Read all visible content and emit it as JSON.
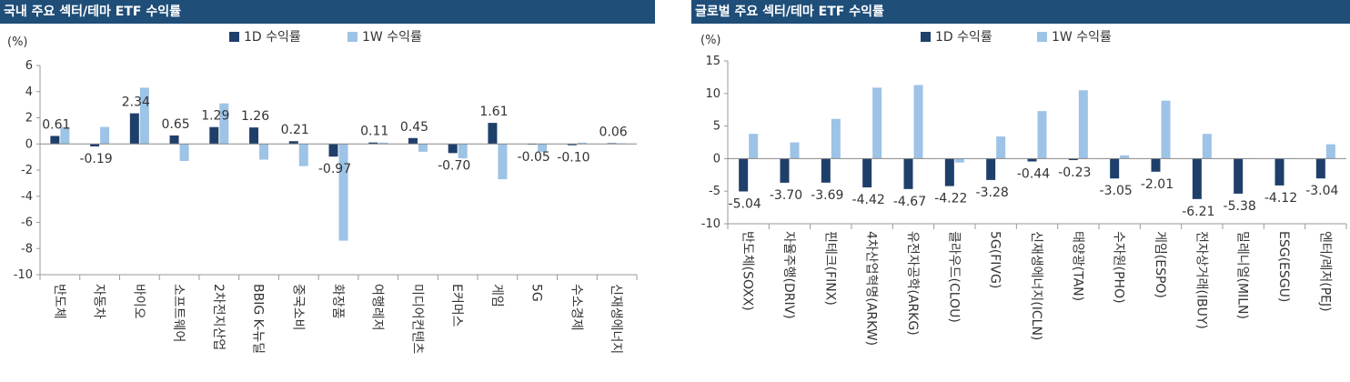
{
  "chart_data": [
    {
      "type": "bar",
      "title": "국내 주요 섹터/테마 ETF 수익률",
      "unit_label": "(%)",
      "ylim": [
        -10,
        6
      ],
      "yticks": [
        6,
        4,
        2,
        0,
        -2,
        -4,
        -6,
        -8,
        -10
      ],
      "legend_position": "top-center",
      "categories": [
        "반도체",
        "자동차",
        "바이오",
        "소프트웨어",
        "2차전지산업",
        "BBIG K-뉴딜",
        "중국소비",
        "화장품",
        "여행레저",
        "미디어컨텐츠",
        "E커머스",
        "게임",
        "5G",
        "수소경제",
        "신재생에너지"
      ],
      "series": [
        {
          "name": "1D 수익률",
          "color": "#1f3f6b",
          "values": [
            0.61,
            -0.19,
            2.34,
            0.65,
            1.29,
            1.26,
            0.21,
            -0.97,
            0.11,
            0.45,
            -0.7,
            1.61,
            -0.05,
            -0.1,
            0.06
          ],
          "labels": [
            "0.61",
            "-0.19",
            "2.34",
            "0.65",
            "1.29",
            "1.26",
            "0.21",
            "-0.97",
            "0.11",
            "0.45",
            "-0.70",
            "1.61",
            "-0.05",
            "-0.10",
            "0.06"
          ]
        },
        {
          "name": "1W 수익률",
          "color": "#9dc3e6",
          "values": [
            1.3,
            1.3,
            4.3,
            -1.3,
            3.1,
            -1.2,
            -1.7,
            -7.4,
            0.1,
            -0.6,
            -1.1,
            -2.7,
            -0.6,
            0.1,
            0.05
          ]
        }
      ]
    },
    {
      "type": "bar",
      "title": "글로벌 주요 섹터/테마 ETF 수익률",
      "unit_label": "(%)",
      "ylim": [
        -10,
        15
      ],
      "yticks": [
        15,
        10,
        5,
        0,
        -5,
        -10
      ],
      "legend_position": "top-center",
      "categories": [
        "반도체(SOXX)",
        "자율주행(DRIV)",
        "핀테크(FINX)",
        "4차산업혁명(ARKW)",
        "유전자공학(ARKG)",
        "클라우드(CLOU)",
        "5G(FIVG)",
        "신재생에너지(ICLN)",
        "태양광(TAN)",
        "수자원(PHO)",
        "게임(ESPO)",
        "전자상거래(IBUY)",
        "밀레니얼(MILN)",
        "ESG(ESGU)",
        "엔터/레저(PEJ)"
      ],
      "series": [
        {
          "name": "1D 수익률",
          "color": "#1f3f6b",
          "values": [
            -5.04,
            -3.7,
            -3.69,
            -4.42,
            -4.67,
            -4.22,
            -3.28,
            -0.44,
            -0.23,
            -3.05,
            -2.01,
            -6.21,
            -5.38,
            -4.12,
            -3.04
          ],
          "labels": [
            "-5.04",
            "-3.70",
            "-3.69",
            "-4.42",
            "-4.67",
            "-4.22",
            "-3.28",
            "-0.44",
            "-0.23",
            "-3.05",
            "-2.01",
            "-6.21",
            "-5.38",
            "-4.12",
            "-3.04"
          ]
        },
        {
          "name": "1W 수익률",
          "color": "#9dc3e6",
          "values": [
            3.8,
            2.5,
            6.1,
            10.9,
            11.3,
            -0.6,
            3.4,
            7.3,
            10.5,
            0.5,
            8.9,
            3.8,
            0.0,
            0.0,
            2.2
          ]
        }
      ]
    }
  ]
}
